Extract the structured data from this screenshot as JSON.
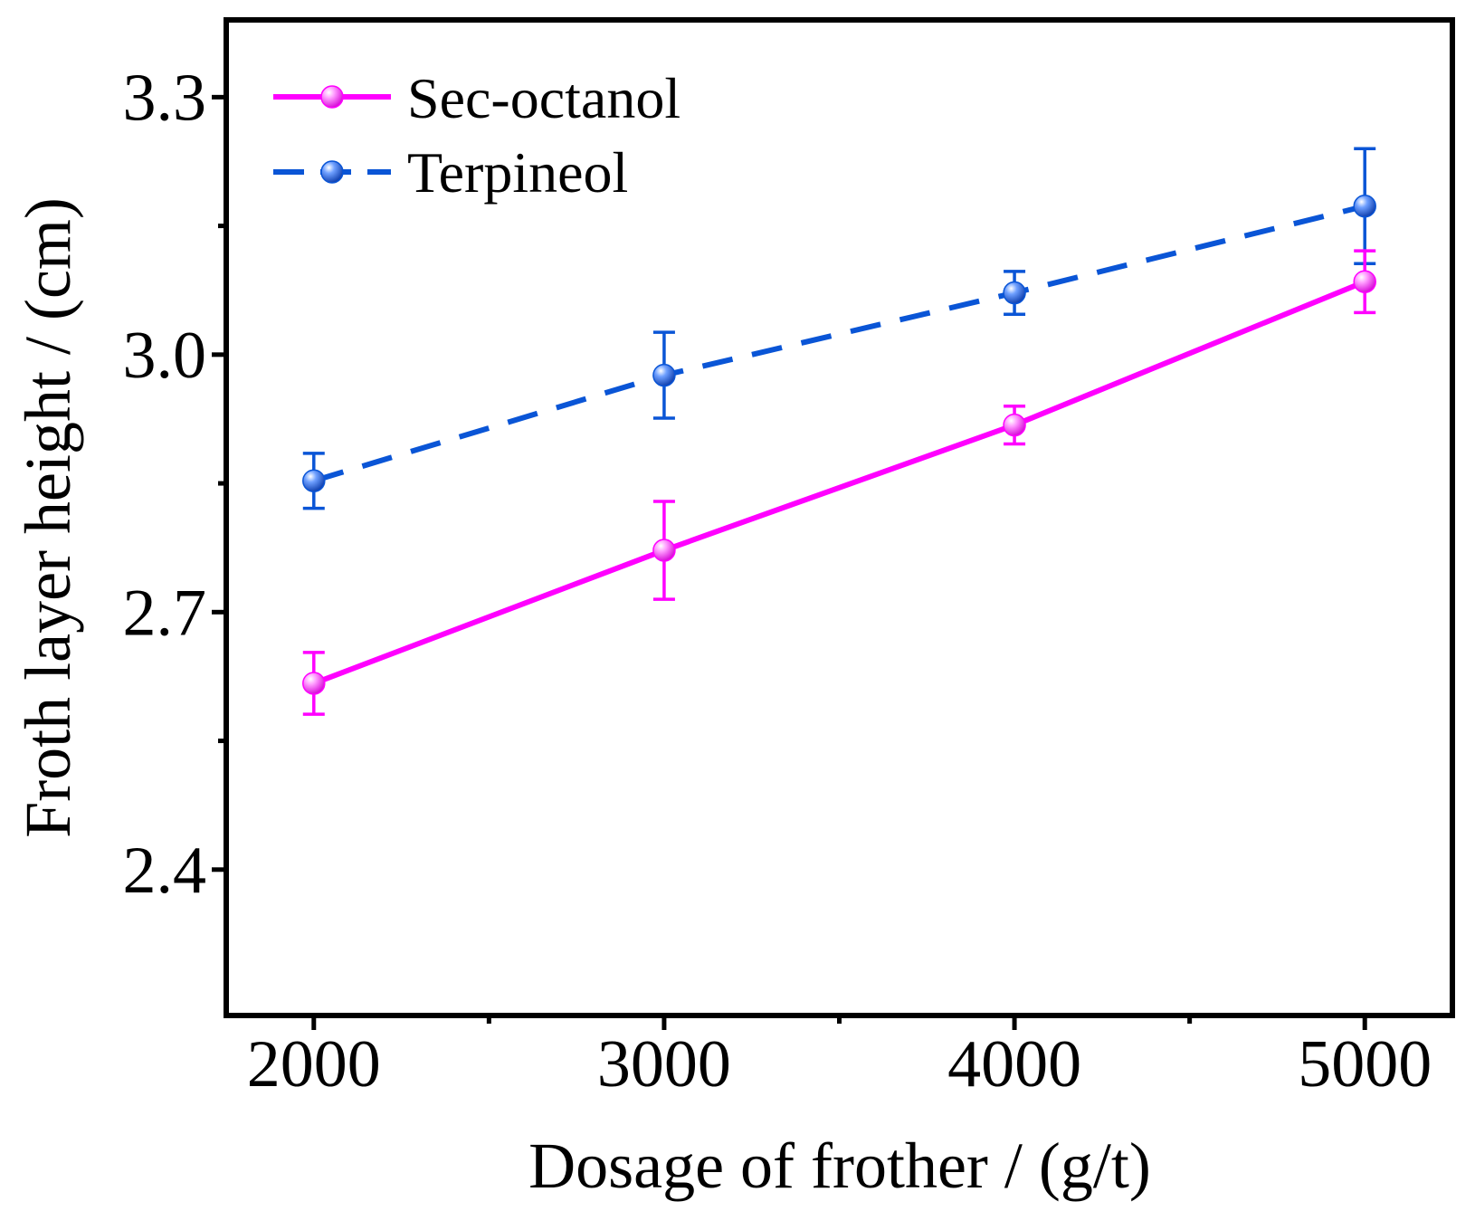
{
  "chart_data": {
    "type": "line",
    "title": "",
    "xlabel": "Dosage of frother / (g/t)",
    "ylabel": "Froth layer height / (cm)",
    "x": [
      2000,
      3000,
      4000,
      5000
    ],
    "xlim": [
      1750,
      5250
    ],
    "ylim": [
      2.23,
      3.39
    ],
    "x_ticks": [
      2000,
      3000,
      4000,
      5000
    ],
    "x_tick_labels": [
      "2000",
      "3000",
      "4000",
      "5000"
    ],
    "x_minor_ticks": [
      2500,
      3500,
      4500
    ],
    "y_ticks": [
      2.4,
      2.7,
      3.0,
      3.3
    ],
    "y_tick_labels": [
      "2.4",
      "2.7",
      "3.0",
      "3.3"
    ],
    "y_minor_ticks": [
      2.55,
      2.85,
      3.15
    ],
    "grid": false,
    "legend_position": "top-left",
    "series": [
      {
        "name": "Sec-octanol",
        "values": [
          2.617,
          2.772,
          2.918,
          3.085
        ],
        "errors": [
          0.036,
          0.057,
          0.022,
          0.036
        ],
        "color": "#ff00ff",
        "line_style": "solid",
        "marker": "sphere"
      },
      {
        "name": "Terpineol",
        "values": [
          2.853,
          2.976,
          3.072,
          3.173
        ],
        "errors": [
          0.032,
          0.05,
          0.025,
          0.067
        ],
        "color": "#0a55d6",
        "line_style": "dashed",
        "marker": "sphere"
      }
    ]
  }
}
